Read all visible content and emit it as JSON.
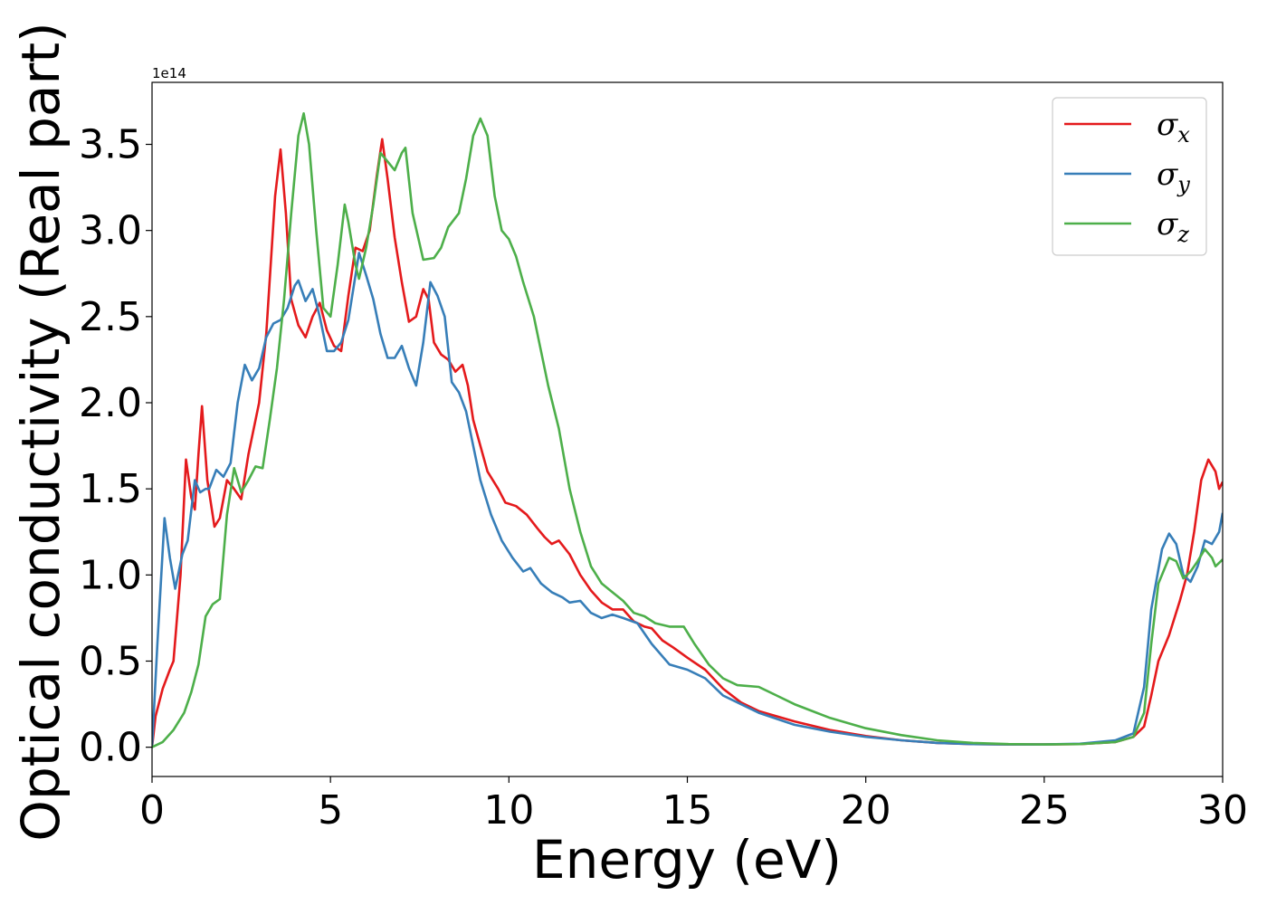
{
  "chart_data": {
    "type": "line",
    "xlabel": "Energy (eV)",
    "ylabel": "Optical conductivity (Real part)",
    "y_offset_label": "1e14",
    "xlim": [
      0,
      30
    ],
    "ylim": [
      -0.17,
      3.86
    ],
    "x_ticks": [
      0,
      5,
      10,
      15,
      20,
      25,
      30
    ],
    "x_tick_labels": [
      "0",
      "5",
      "10",
      "15",
      "20",
      "25",
      "30"
    ],
    "y_ticks": [
      0.0,
      0.5,
      1.0,
      1.5,
      2.0,
      2.5,
      3.0,
      3.5
    ],
    "y_tick_labels": [
      "0.0",
      "0.5",
      "1.0",
      "1.5",
      "2.0",
      "2.5",
      "3.0",
      "3.5"
    ],
    "grid": false,
    "legend_position": "top-right",
    "series": [
      {
        "name": "x",
        "color": "#e41a1c",
        "points": [
          [
            0,
            0
          ],
          [
            0.1,
            0.18
          ],
          [
            0.3,
            0.34
          ],
          [
            0.5,
            0.45
          ],
          [
            0.6,
            0.5
          ],
          [
            0.8,
            1.0
          ],
          [
            0.95,
            1.67
          ],
          [
            1.1,
            1.45
          ],
          [
            1.2,
            1.38
          ],
          [
            1.3,
            1.7
          ],
          [
            1.4,
            1.98
          ],
          [
            1.55,
            1.55
          ],
          [
            1.75,
            1.28
          ],
          [
            1.9,
            1.33
          ],
          [
            2.1,
            1.55
          ],
          [
            2.3,
            1.5
          ],
          [
            2.5,
            1.44
          ],
          [
            2.7,
            1.7
          ],
          [
            3.0,
            2.0
          ],
          [
            3.2,
            2.4
          ],
          [
            3.45,
            3.2
          ],
          [
            3.6,
            3.47
          ],
          [
            3.75,
            3.1
          ],
          [
            3.9,
            2.6
          ],
          [
            4.1,
            2.45
          ],
          [
            4.3,
            2.38
          ],
          [
            4.5,
            2.5
          ],
          [
            4.7,
            2.58
          ],
          [
            4.9,
            2.42
          ],
          [
            5.1,
            2.33
          ],
          [
            5.3,
            2.3
          ],
          [
            5.5,
            2.62
          ],
          [
            5.7,
            2.9
          ],
          [
            5.9,
            2.88
          ],
          [
            6.1,
            3.0
          ],
          [
            6.3,
            3.32
          ],
          [
            6.45,
            3.53
          ],
          [
            6.6,
            3.3
          ],
          [
            6.8,
            2.96
          ],
          [
            7.0,
            2.7
          ],
          [
            7.2,
            2.47
          ],
          [
            7.4,
            2.5
          ],
          [
            7.6,
            2.66
          ],
          [
            7.75,
            2.6
          ],
          [
            7.9,
            2.35
          ],
          [
            8.1,
            2.28
          ],
          [
            8.3,
            2.25
          ],
          [
            8.5,
            2.18
          ],
          [
            8.7,
            2.22
          ],
          [
            8.85,
            2.1
          ],
          [
            9.0,
            1.9
          ],
          [
            9.2,
            1.75
          ],
          [
            9.4,
            1.6
          ],
          [
            9.7,
            1.5
          ],
          [
            9.9,
            1.42
          ],
          [
            10.2,
            1.4
          ],
          [
            10.5,
            1.35
          ],
          [
            10.8,
            1.27
          ],
          [
            11.0,
            1.22
          ],
          [
            11.2,
            1.18
          ],
          [
            11.4,
            1.2
          ],
          [
            11.7,
            1.12
          ],
          [
            12.0,
            1.0
          ],
          [
            12.3,
            0.91
          ],
          [
            12.6,
            0.84
          ],
          [
            12.9,
            0.8
          ],
          [
            13.2,
            0.8
          ],
          [
            13.5,
            0.73
          ],
          [
            13.8,
            0.7
          ],
          [
            14.0,
            0.69
          ],
          [
            14.3,
            0.62
          ],
          [
            14.6,
            0.58
          ],
          [
            15.0,
            0.52
          ],
          [
            15.5,
            0.45
          ],
          [
            16.0,
            0.34
          ],
          [
            16.5,
            0.26
          ],
          [
            17.0,
            0.21
          ],
          [
            18.0,
            0.15
          ],
          [
            19.0,
            0.1
          ],
          [
            20.0,
            0.065
          ],
          [
            21.0,
            0.04
          ],
          [
            22.0,
            0.025
          ],
          [
            23.0,
            0.018
          ],
          [
            24.0,
            0.016
          ],
          [
            25.0,
            0.016
          ],
          [
            26.0,
            0.018
          ],
          [
            27.0,
            0.03
          ],
          [
            27.5,
            0.06
          ],
          [
            27.8,
            0.12
          ],
          [
            28.0,
            0.3
          ],
          [
            28.2,
            0.5
          ],
          [
            28.5,
            0.65
          ],
          [
            28.8,
            0.85
          ],
          [
            29.0,
            1.0
          ],
          [
            29.2,
            1.25
          ],
          [
            29.4,
            1.55
          ],
          [
            29.6,
            1.67
          ],
          [
            29.8,
            1.6
          ],
          [
            29.9,
            1.5
          ],
          [
            30.0,
            1.54
          ]
        ]
      },
      {
        "name": "y",
        "color": "#377eb8",
        "points": [
          [
            0,
            0
          ],
          [
            0.15,
            0.6
          ],
          [
            0.35,
            1.33
          ],
          [
            0.5,
            1.1
          ],
          [
            0.65,
            0.92
          ],
          [
            0.85,
            1.12
          ],
          [
            1.0,
            1.2
          ],
          [
            1.2,
            1.55
          ],
          [
            1.35,
            1.48
          ],
          [
            1.5,
            1.5
          ],
          [
            1.6,
            1.5
          ],
          [
            1.8,
            1.61
          ],
          [
            2.0,
            1.57
          ],
          [
            2.2,
            1.65
          ],
          [
            2.4,
            2.0
          ],
          [
            2.6,
            2.22
          ],
          [
            2.8,
            2.13
          ],
          [
            3.0,
            2.2
          ],
          [
            3.2,
            2.38
          ],
          [
            3.4,
            2.46
          ],
          [
            3.6,
            2.48
          ],
          [
            3.8,
            2.55
          ],
          [
            4.0,
            2.68
          ],
          [
            4.1,
            2.71
          ],
          [
            4.3,
            2.59
          ],
          [
            4.5,
            2.66
          ],
          [
            4.7,
            2.5
          ],
          [
            4.9,
            2.3
          ],
          [
            5.1,
            2.3
          ],
          [
            5.3,
            2.35
          ],
          [
            5.5,
            2.48
          ],
          [
            5.7,
            2.74
          ],
          [
            5.8,
            2.87
          ],
          [
            6.0,
            2.74
          ],
          [
            6.2,
            2.6
          ],
          [
            6.4,
            2.4
          ],
          [
            6.6,
            2.26
          ],
          [
            6.8,
            2.26
          ],
          [
            7.0,
            2.33
          ],
          [
            7.2,
            2.2
          ],
          [
            7.4,
            2.1
          ],
          [
            7.6,
            2.35
          ],
          [
            7.8,
            2.7
          ],
          [
            8.0,
            2.62
          ],
          [
            8.2,
            2.5
          ],
          [
            8.4,
            2.12
          ],
          [
            8.6,
            2.06
          ],
          [
            8.8,
            1.95
          ],
          [
            9.0,
            1.75
          ],
          [
            9.2,
            1.55
          ],
          [
            9.5,
            1.35
          ],
          [
            9.8,
            1.2
          ],
          [
            10.1,
            1.1
          ],
          [
            10.4,
            1.02
          ],
          [
            10.6,
            1.04
          ],
          [
            10.9,
            0.95
          ],
          [
            11.2,
            0.9
          ],
          [
            11.5,
            0.87
          ],
          [
            11.7,
            0.84
          ],
          [
            12.0,
            0.85
          ],
          [
            12.3,
            0.78
          ],
          [
            12.6,
            0.75
          ],
          [
            12.9,
            0.77
          ],
          [
            13.2,
            0.75
          ],
          [
            13.6,
            0.72
          ],
          [
            14.0,
            0.6
          ],
          [
            14.5,
            0.48
          ],
          [
            15.0,
            0.45
          ],
          [
            15.5,
            0.4
          ],
          [
            16.0,
            0.3
          ],
          [
            16.5,
            0.25
          ],
          [
            17.0,
            0.2
          ],
          [
            18.0,
            0.13
          ],
          [
            19.0,
            0.09
          ],
          [
            20.0,
            0.06
          ],
          [
            21.0,
            0.04
          ],
          [
            22.0,
            0.025
          ],
          [
            23.0,
            0.018
          ],
          [
            24.0,
            0.016
          ],
          [
            25.0,
            0.016
          ],
          [
            26.0,
            0.02
          ],
          [
            27.0,
            0.04
          ],
          [
            27.5,
            0.08
          ],
          [
            27.8,
            0.35
          ],
          [
            28.0,
            0.8
          ],
          [
            28.3,
            1.15
          ],
          [
            28.5,
            1.24
          ],
          [
            28.7,
            1.18
          ],
          [
            28.9,
            1.0
          ],
          [
            29.1,
            0.96
          ],
          [
            29.3,
            1.05
          ],
          [
            29.5,
            1.2
          ],
          [
            29.7,
            1.18
          ],
          [
            29.9,
            1.25
          ],
          [
            30.0,
            1.36
          ]
        ]
      },
      {
        "name": "z",
        "color": "#4daf4a",
        "points": [
          [
            0,
            0
          ],
          [
            0.3,
            0.03
          ],
          [
            0.6,
            0.1
          ],
          [
            0.9,
            0.2
          ],
          [
            1.1,
            0.32
          ],
          [
            1.3,
            0.48
          ],
          [
            1.5,
            0.76
          ],
          [
            1.7,
            0.83
          ],
          [
            1.9,
            0.86
          ],
          [
            2.1,
            1.35
          ],
          [
            2.3,
            1.62
          ],
          [
            2.5,
            1.48
          ],
          [
            2.7,
            1.55
          ],
          [
            2.9,
            1.63
          ],
          [
            3.1,
            1.62
          ],
          [
            3.3,
            1.9
          ],
          [
            3.5,
            2.2
          ],
          [
            3.7,
            2.6
          ],
          [
            3.9,
            3.1
          ],
          [
            4.1,
            3.55
          ],
          [
            4.25,
            3.68
          ],
          [
            4.4,
            3.5
          ],
          [
            4.6,
            3.0
          ],
          [
            4.8,
            2.55
          ],
          [
            5.0,
            2.5
          ],
          [
            5.2,
            2.8
          ],
          [
            5.4,
            3.15
          ],
          [
            5.5,
            3.05
          ],
          [
            5.7,
            2.8
          ],
          [
            5.8,
            2.72
          ],
          [
            6.0,
            2.9
          ],
          [
            6.2,
            3.15
          ],
          [
            6.4,
            3.45
          ],
          [
            6.6,
            3.4
          ],
          [
            6.8,
            3.35
          ],
          [
            7.0,
            3.45
          ],
          [
            7.1,
            3.48
          ],
          [
            7.3,
            3.1
          ],
          [
            7.6,
            2.83
          ],
          [
            7.9,
            2.84
          ],
          [
            8.1,
            2.9
          ],
          [
            8.3,
            3.02
          ],
          [
            8.6,
            3.1
          ],
          [
            8.8,
            3.3
          ],
          [
            9.0,
            3.55
          ],
          [
            9.2,
            3.65
          ],
          [
            9.4,
            3.55
          ],
          [
            9.6,
            3.2
          ],
          [
            9.8,
            3.0
          ],
          [
            10.0,
            2.95
          ],
          [
            10.2,
            2.85
          ],
          [
            10.4,
            2.7
          ],
          [
            10.7,
            2.5
          ],
          [
            10.9,
            2.3
          ],
          [
            11.1,
            2.1
          ],
          [
            11.4,
            1.85
          ],
          [
            11.7,
            1.5
          ],
          [
            12.0,
            1.25
          ],
          [
            12.3,
            1.05
          ],
          [
            12.6,
            0.95
          ],
          [
            12.9,
            0.9
          ],
          [
            13.2,
            0.85
          ],
          [
            13.5,
            0.78
          ],
          [
            13.8,
            0.76
          ],
          [
            14.1,
            0.72
          ],
          [
            14.5,
            0.7
          ],
          [
            14.9,
            0.7
          ],
          [
            15.2,
            0.6
          ],
          [
            15.6,
            0.48
          ],
          [
            16.0,
            0.4
          ],
          [
            16.4,
            0.36
          ],
          [
            17.0,
            0.35
          ],
          [
            17.5,
            0.3
          ],
          [
            18.0,
            0.25
          ],
          [
            19.0,
            0.17
          ],
          [
            20.0,
            0.11
          ],
          [
            21.0,
            0.07
          ],
          [
            22.0,
            0.04
          ],
          [
            23.0,
            0.025
          ],
          [
            24.0,
            0.018
          ],
          [
            25.0,
            0.016
          ],
          [
            26.0,
            0.018
          ],
          [
            27.0,
            0.03
          ],
          [
            27.5,
            0.06
          ],
          [
            27.8,
            0.2
          ],
          [
            28.0,
            0.6
          ],
          [
            28.2,
            0.95
          ],
          [
            28.5,
            1.1
          ],
          [
            28.7,
            1.08
          ],
          [
            28.9,
            0.98
          ],
          [
            29.1,
            1.02
          ],
          [
            29.3,
            1.08
          ],
          [
            29.5,
            1.15
          ],
          [
            29.7,
            1.1
          ],
          [
            29.8,
            1.05
          ],
          [
            30.0,
            1.09
          ]
        ]
      }
    ]
  }
}
